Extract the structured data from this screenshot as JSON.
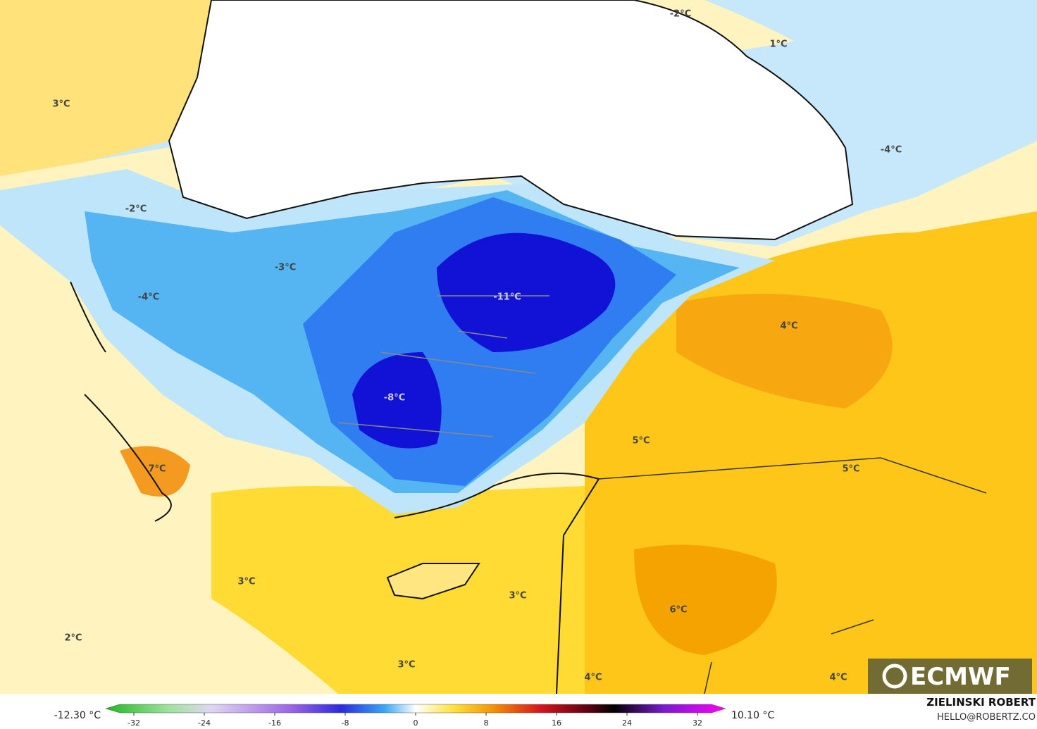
{
  "map_labels": [
    "-2°C",
    "1°C",
    "3°C",
    "-4°C",
    "-2°C",
    "-3°C",
    "-4°C",
    "-11°C",
    "4°C",
    "-8°C",
    "5°C",
    "5°C",
    "7°C",
    "3°C",
    "3°C",
    "6°C",
    "2°C",
    "3°C",
    "4°C",
    "4°C"
  ],
  "colorbar": {
    "min_label": "-12.30 °C",
    "max_label": "10.10 °C",
    "ticks": [
      -32,
      -24,
      -16,
      -8,
      0,
      8,
      16,
      24,
      32
    ]
  },
  "credit": {
    "author": "ZIELINSKI ROBERT",
    "email": "HELLO@ROBERTZ.CO"
  },
  "logo": "ECMWF"
}
